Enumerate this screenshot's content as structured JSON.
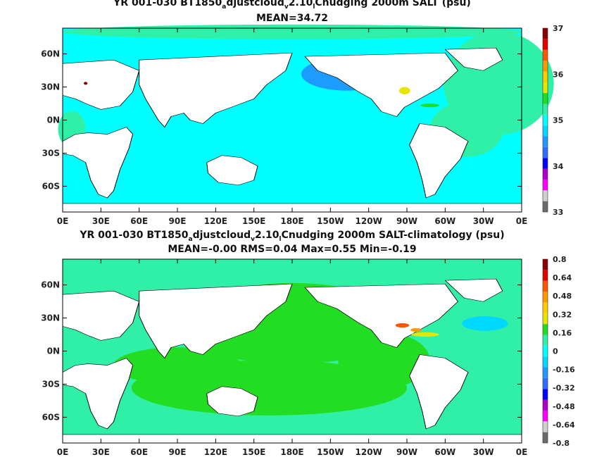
{
  "chart_data": [
    {
      "type": "heatmap",
      "title": {
        "pre": "YR 001-030 BT1850",
        "s1": "a",
        "mid": "djustcloud",
        "s2": "v",
        "post": "2.10",
        "s3": "l",
        "end": "Cnudging 2000m SALT (psu)"
      },
      "subtitle": "MEAN=34.72",
      "x_ticks": [
        "0E",
        "30E",
        "60E",
        "90E",
        "120E",
        "150E",
        "180E",
        "150W",
        "120W",
        "90W",
        "60W",
        "30W",
        "0E"
      ],
      "y_ticks": [
        "60N",
        "30N",
        "0N",
        "30S",
        "60S"
      ],
      "colorbar_ticks": [
        "37",
        "36",
        "35",
        "34",
        "33"
      ],
      "colorbar_range": [
        33,
        37
      ],
      "colors": [
        "#6b6b6b",
        "#cfcfcf",
        "#ff00ff",
        "#a800c8",
        "#0000ff",
        "#2f6cff",
        "#1e9bff",
        "#00d8ff",
        "#00ffff",
        "#30f0a8",
        "#22dd22",
        "#e6e600",
        "#ffcc00",
        "#ff9900",
        "#ff5500",
        "#e00000",
        "#8a0000"
      ]
    },
    {
      "type": "heatmap",
      "title": {
        "pre": "YR 001-030 BT1850",
        "s1": "a",
        "mid": "djustcloud",
        "s2": "v",
        "post": "2.10",
        "s3": "l",
        "end": "Cnudging 2000m SALT-climatology (psu)"
      },
      "subtitle": "MEAN=-0.00   RMS=0.04   Max=0.55   Min=-0.19",
      "x_ticks": [
        "0E",
        "30E",
        "60E",
        "90E",
        "120E",
        "150E",
        "180E",
        "150W",
        "120W",
        "90W",
        "60W",
        "30W",
        "0E"
      ],
      "y_ticks": [
        "60N",
        "30N",
        "0N",
        "30S",
        "60S"
      ],
      "colorbar_ticks": [
        "0.8",
        "0.64",
        "0.48",
        "0.32",
        "0.16",
        "0",
        "-0.16",
        "-0.32",
        "-0.48",
        "-0.64",
        "-0.8"
      ],
      "colorbar_range": [
        -0.8,
        0.8
      ],
      "colors": [
        "#6b6b6b",
        "#cfcfcf",
        "#ff00ff",
        "#a800c8",
        "#0000ff",
        "#2f6cff",
        "#1e9bff",
        "#00d8ff",
        "#00ffff",
        "#30f0a8",
        "#22dd22",
        "#e6e600",
        "#ffcc00",
        "#ff9900",
        "#ff5500",
        "#e00000",
        "#8a0000"
      ]
    }
  ]
}
